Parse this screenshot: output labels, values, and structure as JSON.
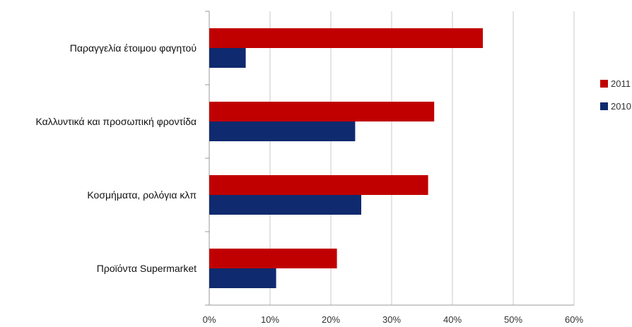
{
  "chart_data": {
    "type": "bar",
    "orientation": "horizontal",
    "categories": [
      "Παραγγελία έτοιμου φαγητού",
      "Καλλυντικά και προσωπική φροντίδα",
      "Κοσμήματα, ρολόγια κλπ",
      "Προϊόντα Supermarket"
    ],
    "series": [
      {
        "name": "2011",
        "color": "#C00000",
        "values": [
          45,
          37,
          36,
          21
        ]
      },
      {
        "name": "2010",
        "color": "#0F2A6E",
        "values": [
          6,
          24,
          25,
          11
        ]
      }
    ],
    "xlim": [
      0,
      60
    ],
    "x_ticks": [
      "0%",
      "10%",
      "20%",
      "30%",
      "40%",
      "50%",
      "60%"
    ],
    "grid": true,
    "legend": "right",
    "title": "",
    "xlabel": "",
    "ylabel": ""
  }
}
